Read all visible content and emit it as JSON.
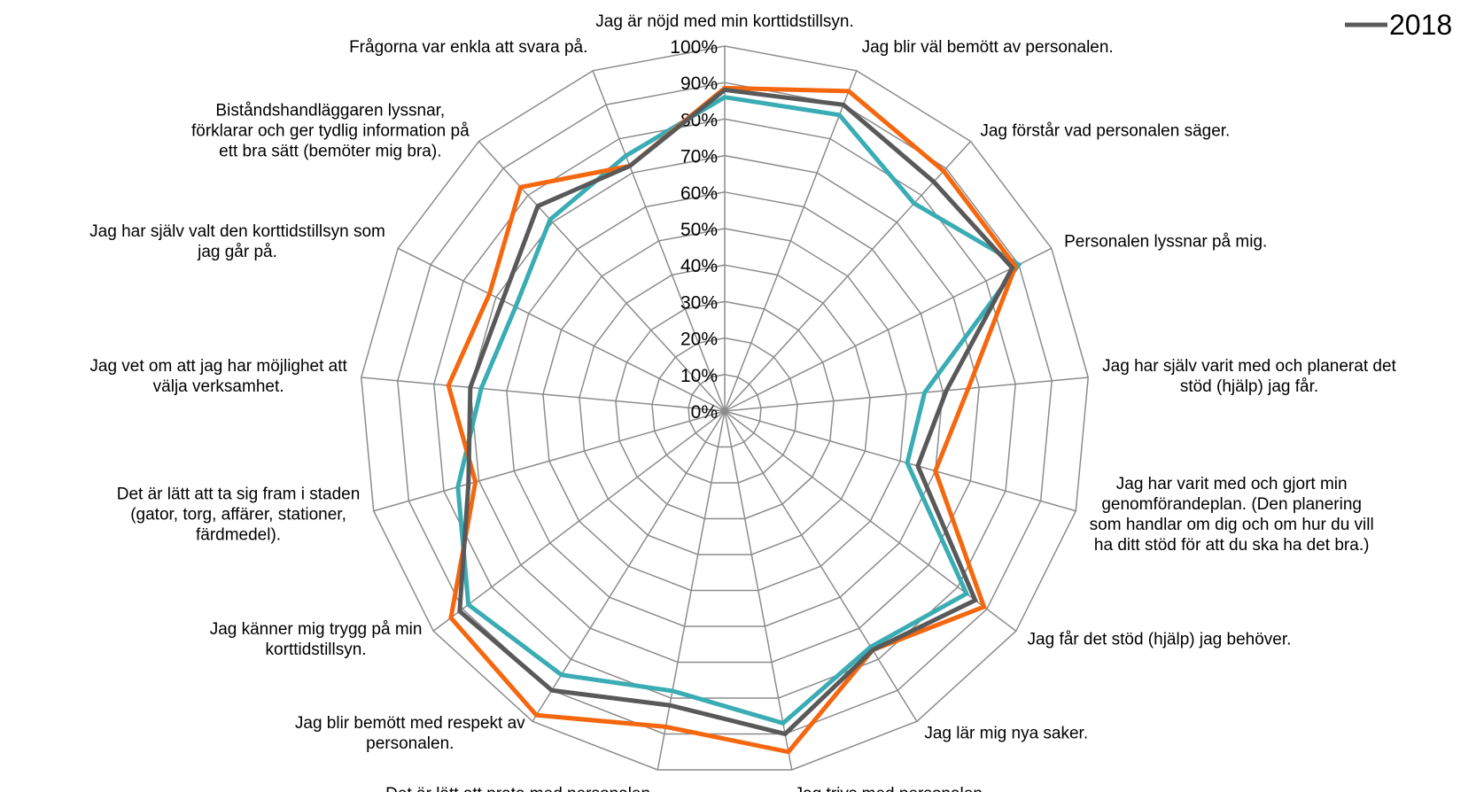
{
  "chart_data": {
    "type": "radar",
    "categories": [
      "Jag är nöjd med min korttidstillsyn.",
      "Jag blir väl bemött av personalen.",
      "Jag förstår vad personalen säger.",
      "Personalen lyssnar på mig.",
      "Jag har själv varit med och planerat det\nstöd (hjälp) jag får.",
      "Jag har varit med och gjort min\ngenomförandeplan. (Den planering\nsom handlar om dig och om hur du vill\nha ditt stöd för att du ska ha det bra.)",
      "Jag får det stöd (hjälp) jag behöver.",
      "Jag lär mig nya saker.",
      "Jag trivs med personalen.",
      "Det är lätt att prata med personalen.",
      "Jag blir bemött med respekt av\npersonalen.",
      "Jag känner mig trygg på min\nkorttidstillsyn.",
      "Det är lätt att ta sig fram i staden\n(gator, torg, affärer, stationer,\nfärdmedel).",
      "Jag vet om att jag har möjlighet att\nvälja verksamhet.",
      "Jag har själv valt den korttidstillsyn som\njag går på.",
      "Biståndshandläggaren lyssnar,\nförklarar och ger tydlig information på\nett bra sätt (bemöter mig bra).",
      "Frågorna var enkla att svara på."
    ],
    "series": [
      {
        "color": "#3aacb4",
        "values": [
          86,
          87,
          77,
          90,
          55,
          52,
          83,
          76,
          87,
          78,
          85,
          88,
          76,
          67,
          64,
          71,
          75
        ]
      },
      {
        "color": "#f5670f",
        "values": [
          88.5,
          94,
          89,
          89,
          67,
          60,
          89,
          77,
          95,
          88,
          98,
          94,
          71,
          76,
          72,
          83,
          72
        ]
      },
      {
        "name": "2018",
        "color": "#595959",
        "values": [
          88,
          90,
          85,
          88,
          61,
          55,
          86,
          77,
          90,
          82,
          90,
          91,
          73,
          70,
          68,
          76,
          72
        ]
      }
    ],
    "rlim": [
      0,
      100
    ],
    "rticks": [
      {
        "value": 0,
        "label": "0%"
      },
      {
        "value": 10,
        "label": "10%"
      },
      {
        "value": 20,
        "label": "20%"
      },
      {
        "value": 30,
        "label": "30%"
      },
      {
        "value": 40,
        "label": "40%"
      },
      {
        "value": 50,
        "label": "50%"
      },
      {
        "value": 60,
        "label": "60%"
      },
      {
        "value": 70,
        "label": "70%"
      },
      {
        "value": 80,
        "label": "80%"
      },
      {
        "value": 90,
        "label": "90%"
      },
      {
        "value": 100,
        "label": "100%"
      }
    ],
    "grid": true
  }
}
